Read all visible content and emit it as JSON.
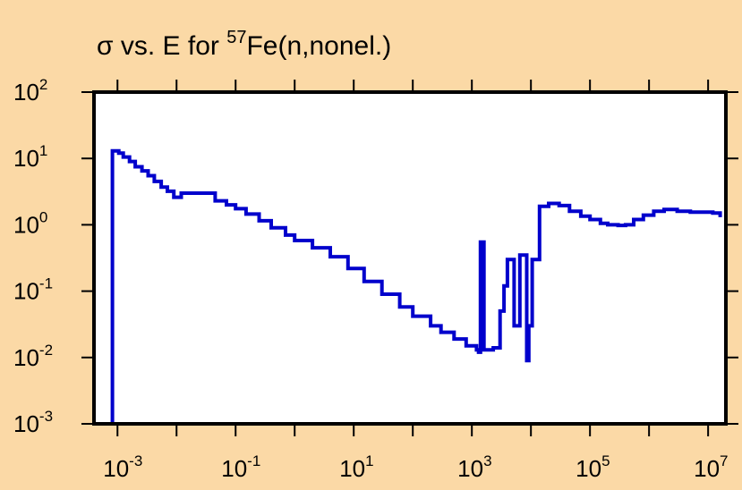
{
  "chart_data": {
    "type": "line",
    "title_parts": {
      "prefix": "σ vs. E for ",
      "isotope_mass": "57",
      "suffix": "Fe(n,nonel.)"
    },
    "xlabel": "",
    "ylabel": "",
    "x_scale": "log",
    "y_scale": "log",
    "xlim": [
      0.0004,
      20000000
    ],
    "ylim": [
      0.001,
      100
    ],
    "x_ticks": [
      {
        "base": "10",
        "exp": "-3",
        "value": 0.001
      },
      {
        "base": "10",
        "exp": "-1",
        "value": 0.1
      },
      {
        "base": "10",
        "exp": "1",
        "value": 10
      },
      {
        "base": "10",
        "exp": "3",
        "value": 1000
      },
      {
        "base": "10",
        "exp": "5",
        "value": 100000
      },
      {
        "base": "10",
        "exp": "7",
        "value": 10000000
      }
    ],
    "y_ticks": [
      {
        "base": "10",
        "exp": "2",
        "value": 100
      },
      {
        "base": "10",
        "exp": "1",
        "value": 10
      },
      {
        "base": "10",
        "exp": "0",
        "value": 1
      },
      {
        "base": "10",
        "exp": "-1",
        "value": 0.1
      },
      {
        "base": "10",
        "exp": "-2",
        "value": 0.01
      },
      {
        "base": "10",
        "exp": "-3",
        "value": 0.001
      }
    ],
    "grid": false,
    "line_style": "step",
    "series": [
      {
        "color": "#0000cc",
        "x": [
          0.00082,
          0.00082,
          0.00105,
          0.00125,
          0.0016,
          0.002,
          0.0026,
          0.0033,
          0.0042,
          0.0055,
          0.007,
          0.009,
          0.012,
          0.03,
          0.045,
          0.07,
          0.1,
          0.15,
          0.25,
          0.4,
          0.7,
          1,
          2,
          4,
          8,
          15,
          30,
          60,
          100,
          200,
          300,
          500,
          800,
          1200,
          1300,
          1400,
          1400,
          1600,
          1600,
          1900,
          2300,
          3000,
          3000,
          3500,
          3500,
          4000,
          4000,
          5200,
          5200,
          6500,
          6500,
          8500,
          8500,
          9200,
          9200,
          10500,
          10500,
          14000,
          14000,
          20000,
          20000,
          30000,
          45000,
          70000,
          100000,
          150000,
          200000,
          300000,
          400000,
          550000,
          800000,
          1200000,
          1800000,
          3000000,
          5000000,
          8000000,
          12000000,
          16000000,
          16000000
        ],
        "y": [
          0.001,
          13,
          12,
          10.5,
          9,
          7.5,
          6.5,
          5.5,
          4.5,
          3.7,
          3.2,
          2.6,
          3.0,
          3.0,
          2.3,
          2.0,
          1.75,
          1.45,
          1.15,
          0.9,
          0.7,
          0.58,
          0.45,
          0.33,
          0.22,
          0.14,
          0.09,
          0.058,
          0.042,
          0.03,
          0.024,
          0.019,
          0.015,
          0.013,
          0.012,
          0.012,
          0.55,
          0.55,
          0.013,
          0.013,
          0.014,
          0.016,
          0.05,
          0.05,
          0.12,
          0.12,
          0.3,
          0.3,
          0.03,
          0.03,
          0.35,
          0.35,
          0.009,
          0.009,
          0.03,
          0.03,
          0.3,
          0.3,
          1.9,
          1.9,
          2.1,
          1.95,
          1.6,
          1.35,
          1.2,
          1.05,
          1.0,
          0.98,
          1.0,
          1.2,
          1.4,
          1.6,
          1.7,
          1.6,
          1.55,
          1.55,
          1.5,
          1.45,
          1.3
        ]
      }
    ]
  }
}
